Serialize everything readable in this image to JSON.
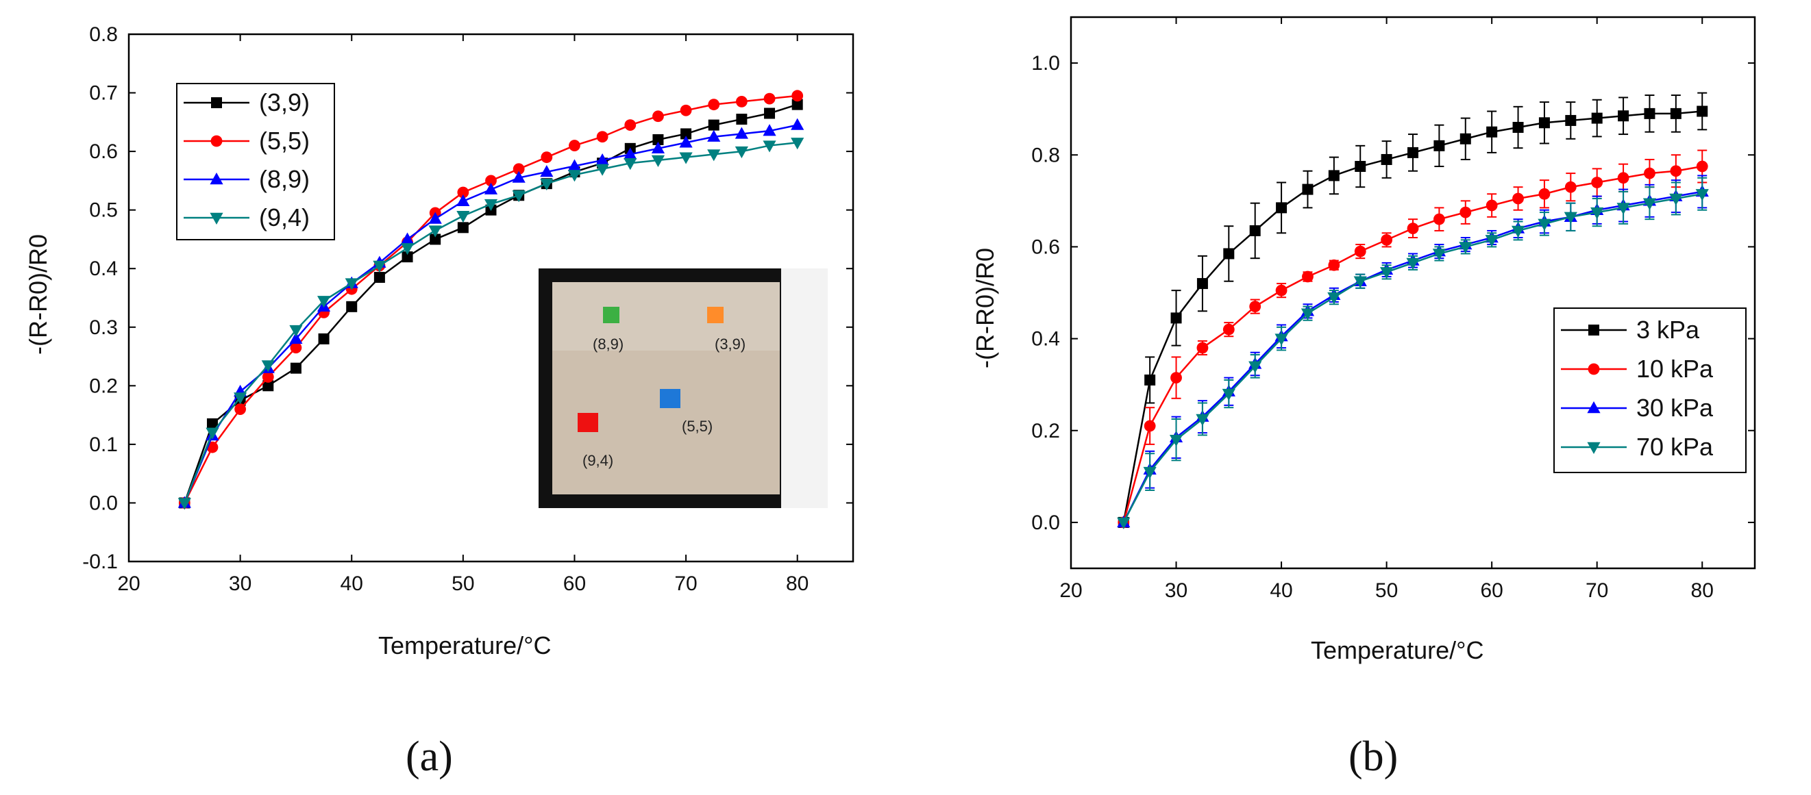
{
  "chart_data": [
    {
      "type": "line",
      "panel_label": "(a)",
      "xlabel": "Temperature/°C",
      "ylabel": "-(R-R0)/R0",
      "xlim": [
        20,
        85
      ],
      "ylim": [
        -0.1,
        0.8
      ],
      "xticks": [
        20,
        30,
        40,
        50,
        60,
        70,
        80
      ],
      "yticks": [
        -0.1,
        0.0,
        0.1,
        0.2,
        0.3,
        0.4,
        0.5,
        0.6,
        0.7,
        0.8
      ],
      "x": [
        25,
        27.5,
        30,
        32.5,
        35,
        37.5,
        40,
        42.5,
        45,
        47.5,
        50,
        52.5,
        55,
        57.5,
        60,
        62.5,
        65,
        67.5,
        70,
        72.5,
        75,
        77.5,
        80
      ],
      "legend_position": "upper-left",
      "series": [
        {
          "name": "(3,9)",
          "color": "#000000",
          "marker": "square",
          "values": [
            0.0,
            0.135,
            0.175,
            0.2,
            0.23,
            0.28,
            0.335,
            0.385,
            0.42,
            0.45,
            0.47,
            0.5,
            0.525,
            0.545,
            0.565,
            0.58,
            0.605,
            0.62,
            0.63,
            0.645,
            0.655,
            0.665,
            0.68
          ]
        },
        {
          "name": "(5,5)",
          "color": "#ff0000",
          "marker": "circle",
          "values": [
            0.0,
            0.095,
            0.16,
            0.215,
            0.265,
            0.325,
            0.365,
            0.405,
            0.445,
            0.495,
            0.53,
            0.55,
            0.57,
            0.59,
            0.61,
            0.625,
            0.645,
            0.66,
            0.67,
            0.68,
            0.685,
            0.69,
            0.695
          ]
        },
        {
          "name": "(8,9)",
          "color": "#0000ff",
          "marker": "triangle-up",
          "values": [
            0.0,
            0.115,
            0.19,
            0.23,
            0.28,
            0.335,
            0.375,
            0.41,
            0.45,
            0.485,
            0.515,
            0.535,
            0.555,
            0.565,
            0.575,
            0.585,
            0.595,
            0.605,
            0.615,
            0.625,
            0.63,
            0.635,
            0.645
          ]
        },
        {
          "name": "(9,4)",
          "color": "#008080",
          "marker": "triangle-down",
          "values": [
            0.0,
            0.12,
            0.18,
            0.235,
            0.295,
            0.345,
            0.375,
            0.405,
            0.435,
            0.465,
            0.49,
            0.51,
            0.525,
            0.545,
            0.56,
            0.57,
            0.58,
            0.585,
            0.59,
            0.595,
            0.6,
            0.61,
            0.615
          ]
        }
      ],
      "inset": {
        "points": [
          {
            "label": "(8,9)",
            "color": "#3cb043"
          },
          {
            "label": "(3,9)",
            "color": "#ff8c2a"
          },
          {
            "label": "(5,5)",
            "color": "#1e78d8"
          },
          {
            "label": "(9,4)",
            "color": "#ee1111"
          }
        ]
      }
    },
    {
      "type": "line",
      "panel_label": "(b)",
      "xlabel": "Temperature/°C",
      "ylabel": "-(R-R0)/R0",
      "xlim": [
        20,
        85
      ],
      "ylim": [
        -0.1,
        1.1
      ],
      "xticks": [
        20,
        30,
        40,
        50,
        60,
        70,
        80
      ],
      "yticks": [
        0.0,
        0.2,
        0.4,
        0.6,
        0.8,
        1.0
      ],
      "x": [
        25,
        27.5,
        30,
        32.5,
        35,
        37.5,
        40,
        42.5,
        45,
        47.5,
        50,
        52.5,
        55,
        57.5,
        60,
        62.5,
        65,
        67.5,
        70,
        72.5,
        75,
        77.5,
        80
      ],
      "legend_position": "lower-right",
      "series": [
        {
          "name": "3 kPa",
          "color": "#000000",
          "marker": "square",
          "values": [
            0.0,
            0.31,
            0.445,
            0.52,
            0.585,
            0.635,
            0.685,
            0.725,
            0.755,
            0.775,
            0.79,
            0.805,
            0.82,
            0.835,
            0.85,
            0.86,
            0.87,
            0.875,
            0.88,
            0.885,
            0.89,
            0.89,
            0.895
          ],
          "error": [
            0.0,
            0.05,
            0.06,
            0.06,
            0.06,
            0.06,
            0.055,
            0.04,
            0.04,
            0.045,
            0.04,
            0.04,
            0.045,
            0.045,
            0.045,
            0.045,
            0.045,
            0.04,
            0.04,
            0.04,
            0.04,
            0.04,
            0.04
          ]
        },
        {
          "name": "10 kPa",
          "color": "#ff0000",
          "marker": "circle",
          "values": [
            0.0,
            0.21,
            0.315,
            0.38,
            0.42,
            0.47,
            0.505,
            0.535,
            0.56,
            0.59,
            0.615,
            0.64,
            0.66,
            0.675,
            0.69,
            0.705,
            0.715,
            0.73,
            0.74,
            0.75,
            0.76,
            0.765,
            0.775
          ],
          "error": [
            0.0,
            0.04,
            0.045,
            0.015,
            0.015,
            0.015,
            0.015,
            0.01,
            0.01,
            0.015,
            0.015,
            0.02,
            0.025,
            0.025,
            0.025,
            0.025,
            0.03,
            0.03,
            0.03,
            0.03,
            0.03,
            0.035,
            0.035
          ]
        },
        {
          "name": "30 kPa",
          "color": "#0000ff",
          "marker": "triangle-up",
          "values": [
            0.0,
            0.115,
            0.185,
            0.23,
            0.285,
            0.345,
            0.405,
            0.46,
            0.495,
            0.525,
            0.55,
            0.57,
            0.59,
            0.605,
            0.62,
            0.64,
            0.655,
            0.665,
            0.68,
            0.69,
            0.7,
            0.71,
            0.72
          ],
          "error": [
            0.0,
            0.04,
            0.045,
            0.035,
            0.03,
            0.025,
            0.025,
            0.015,
            0.015,
            0.015,
            0.015,
            0.015,
            0.015,
            0.015,
            0.015,
            0.02,
            0.025,
            0.03,
            0.03,
            0.035,
            0.035,
            0.035,
            0.035
          ]
        },
        {
          "name": "70 kPa",
          "color": "#008080",
          "marker": "triangle-down",
          "values": [
            0.0,
            0.11,
            0.18,
            0.225,
            0.28,
            0.34,
            0.4,
            0.455,
            0.49,
            0.525,
            0.545,
            0.565,
            0.585,
            0.6,
            0.615,
            0.635,
            0.65,
            0.665,
            0.675,
            0.685,
            0.695,
            0.705,
            0.715
          ],
          "error": [
            0.0,
            0.04,
            0.045,
            0.035,
            0.03,
            0.025,
            0.025,
            0.015,
            0.015,
            0.015,
            0.015,
            0.015,
            0.015,
            0.015,
            0.015,
            0.02,
            0.025,
            0.03,
            0.03,
            0.035,
            0.035,
            0.035,
            0.035
          ]
        }
      ]
    }
  ]
}
